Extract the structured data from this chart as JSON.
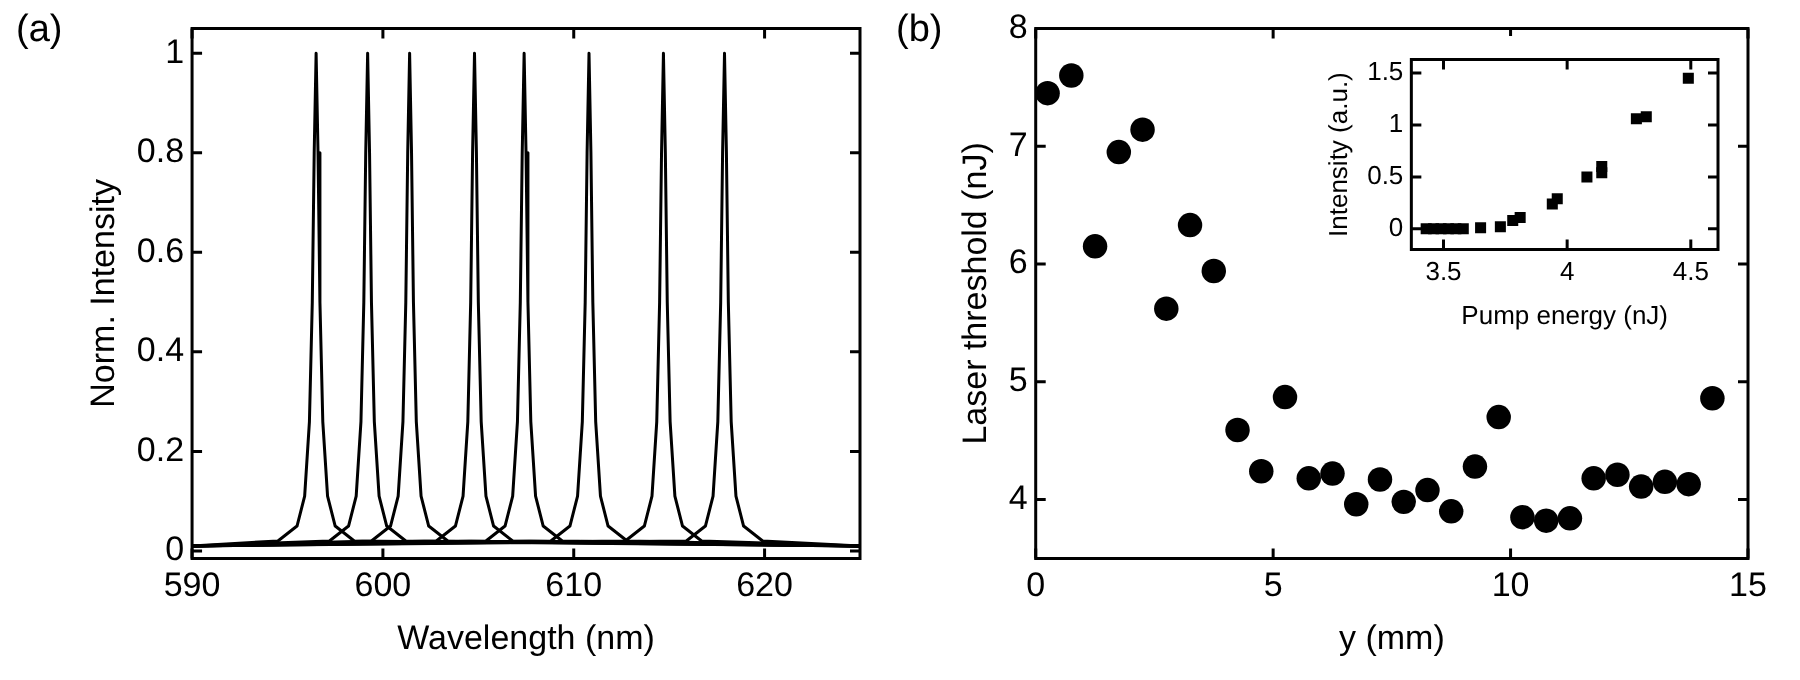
{
  "chart_data": [
    {
      "type": "line",
      "title": "(a)",
      "xlabel": "Wavelength (nm)",
      "ylabel": "Norm. Intensity",
      "xlim": [
        590,
        625
      ],
      "xticks": [
        590,
        600,
        610,
        620
      ],
      "ylim": [
        -0.015,
        1.05
      ],
      "yticks": [
        0,
        0.2,
        0.4,
        0.6,
        0.8,
        1
      ],
      "grid": false,
      "legend": false,
      "marker": "none",
      "line_style": "solid",
      "series": [
        {
          "color": "#000000",
          "x": [
            590,
            594.5,
            595.5,
            595.9,
            596.15,
            596.3,
            596.4,
            596.5,
            596.6,
            596.7,
            596.85,
            597.1,
            597.5,
            598.5,
            625
          ],
          "values": [
            0.01,
            0.02,
            0.05,
            0.11,
            0.26,
            0.5,
            0.8,
            1,
            0.8,
            0.5,
            0.26,
            0.11,
            0.05,
            0.02,
            0.01
          ]
        },
        {
          "color": "#000000",
          "x": [
            590,
            597.2,
            598.2,
            598.6,
            598.85,
            599,
            599.1,
            599.2,
            599.3,
            599.4,
            599.55,
            599.8,
            600.2,
            601.2,
            625
          ],
          "values": [
            0.01,
            0.02,
            0.05,
            0.11,
            0.26,
            0.5,
            0.8,
            1,
            0.8,
            0.5,
            0.26,
            0.11,
            0.05,
            0.02,
            0.01
          ]
        },
        {
          "color": "#000000",
          "x": [
            590,
            599.4,
            600.4,
            600.8,
            601.05,
            601.2,
            601.3,
            601.4,
            601.5,
            601.6,
            601.75,
            602,
            602.4,
            603.4,
            625
          ],
          "values": [
            0.01,
            0.02,
            0.05,
            0.11,
            0.26,
            0.5,
            0.8,
            1,
            0.8,
            0.5,
            0.26,
            0.11,
            0.05,
            0.02,
            0.01
          ]
        },
        {
          "color": "#000000",
          "x": [
            590,
            602.8,
            603.8,
            604.2,
            604.45,
            604.6,
            604.7,
            604.8,
            604.9,
            605,
            605.15,
            605.4,
            605.8,
            606.8,
            625
          ],
          "values": [
            0.01,
            0.02,
            0.05,
            0.11,
            0.26,
            0.5,
            0.8,
            1,
            0.8,
            0.5,
            0.26,
            0.11,
            0.05,
            0.02,
            0.01
          ]
        },
        {
          "color": "#000000",
          "x": [
            590,
            605.4,
            606.4,
            606.8,
            607.05,
            607.2,
            607.3,
            607.4,
            607.5,
            607.6,
            607.75,
            608,
            608.4,
            609.4,
            625
          ],
          "values": [
            0.01,
            0.02,
            0.05,
            0.11,
            0.26,
            0.5,
            0.8,
            1,
            0.8,
            0.5,
            0.26,
            0.11,
            0.05,
            0.02,
            0.01
          ]
        },
        {
          "color": "#000000",
          "x": [
            590,
            608.8,
            609.8,
            610.2,
            610.45,
            610.6,
            610.7,
            610.8,
            610.9,
            611,
            611.15,
            611.4,
            611.8,
            612.8,
            625
          ],
          "values": [
            0.01,
            0.02,
            0.05,
            0.11,
            0.26,
            0.5,
            0.8,
            1,
            0.8,
            0.5,
            0.26,
            0.11,
            0.05,
            0.02,
            0.01
          ]
        },
        {
          "color": "#000000",
          "x": [
            590,
            612.7,
            613.7,
            614.1,
            614.35,
            614.5,
            614.6,
            614.7,
            614.8,
            614.9,
            615.05,
            615.3,
            615.7,
            616.7,
            625
          ],
          "values": [
            0.01,
            0.02,
            0.05,
            0.11,
            0.26,
            0.5,
            0.8,
            1,
            0.8,
            0.5,
            0.26,
            0.11,
            0.05,
            0.02,
            0.01
          ]
        },
        {
          "color": "#000000",
          "x": [
            590,
            615.9,
            616.9,
            617.3,
            617.55,
            617.7,
            617.8,
            617.9,
            618,
            618.1,
            618.25,
            618.5,
            618.9,
            619.9,
            625
          ],
          "values": [
            0.01,
            0.02,
            0.05,
            0.11,
            0.26,
            0.5,
            0.8,
            1,
            0.8,
            0.5,
            0.26,
            0.11,
            0.05,
            0.02,
            0.01
          ]
        }
      ]
    },
    {
      "type": "scatter",
      "title": "(b)",
      "xlabel": "y (mm)",
      "ylabel": "Laser threshold (nJ)",
      "xlim": [
        0,
        15
      ],
      "xticks": [
        0,
        5,
        10,
        15
      ],
      "ylim": [
        3.5,
        8
      ],
      "yticks": [
        4,
        5,
        6,
        7,
        8
      ],
      "grid": false,
      "legend": false,
      "marker": "circle",
      "series": [
        {
          "color": "#000000",
          "x": [
            0.25,
            0.75,
            1.25,
            1.75,
            2.25,
            2.75,
            3.25,
            3.75,
            4.25,
            4.75,
            5.25,
            5.75,
            6.25,
            6.75,
            7.25,
            7.75,
            8.25,
            8.75,
            9.25,
            9.75,
            10.25,
            10.75,
            11.25,
            11.75,
            12.25,
            12.75,
            13.25,
            13.75,
            14.25
          ],
          "values": [
            7.45,
            7.6,
            6.15,
            6.95,
            7.14,
            5.62,
            6.33,
            5.94,
            4.59,
            4.24,
            4.87,
            4.18,
            4.22,
            3.96,
            4.17,
            3.98,
            4.08,
            3.9,
            4.28,
            4.7,
            3.85,
            3.82,
            3.84,
            4.18,
            4.21,
            4.11,
            4.15,
            4.13,
            4.86
          ]
        }
      ]
    },
    {
      "type": "scatter",
      "xlabel": "Pump energy (nJ)",
      "ylabel": "Intensity (a.u.)",
      "xlim": [
        3.37,
        4.61
      ],
      "xticks": [
        3.5,
        4,
        4.5
      ],
      "ylim": [
        -0.2,
        1.63
      ],
      "yticks": [
        0,
        0.5,
        1,
        1.5
      ],
      "grid": false,
      "legend": false,
      "marker": "square",
      "series": [
        {
          "color": "#000000",
          "x": [
            3.43,
            3.46,
            3.49,
            3.52,
            3.55,
            3.58,
            3.65,
            3.73,
            3.78,
            3.81,
            3.94,
            3.96,
            4.08,
            4.14,
            4.14,
            4.28,
            4.32,
            4.49
          ],
          "values": [
            0,
            0,
            0,
            0,
            0,
            0,
            0.01,
            0.02,
            0.08,
            0.11,
            0.24,
            0.29,
            0.5,
            0.54,
            0.6,
            1.06,
            1.08,
            1.45
          ]
        }
      ]
    }
  ]
}
